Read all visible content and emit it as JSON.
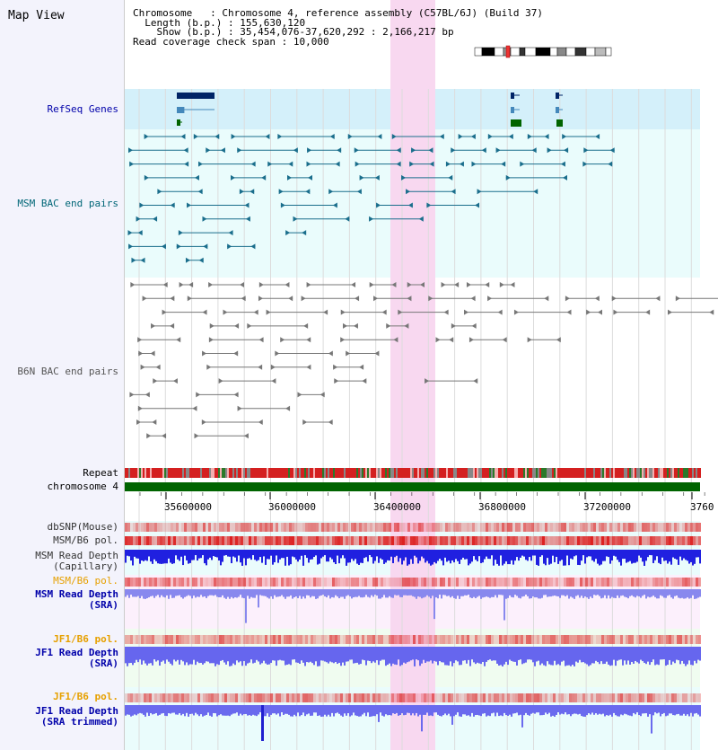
{
  "page": {
    "title": "Map View"
  },
  "info": {
    "line1_label": "Chromosome  ",
    "line1_value": "Chromosome 4, reference assembly (C57BL/6J) (Build 37)",
    "line2_label": "Length (b.p.)",
    "line2_value": "155,630,120",
    "line3_label": "Show (b.p.)",
    "line3_value": "35,454,076-37,620,292 : 2,166,217 bp",
    "line4_label": "Read coverage check span",
    "line4_value": "10,000"
  },
  "tracks": {
    "refseq": "RefSeq Genes",
    "msm_bac": "MSM BAC end pairs",
    "b6n_bac": "B6N BAC end pairs",
    "repeat": "Repeat",
    "chromosome": "chromosome 4",
    "dbsnp": "dbSNP(Mouse)",
    "msm_b6_pol_1": "MSM/B6 pol.",
    "msm_read_depth_cap_1": "MSM Read Depth",
    "msm_read_depth_cap_2": "(Capillary)",
    "msm_b6_pol_2": "MSM/B6 pol.",
    "msm_read_depth_sra_1": "MSM Read Depth",
    "msm_read_depth_sra_2": "(SRA)",
    "jf1_b6_pol_1": "JF1/B6 pol.",
    "jf1_read_depth_sra_1": "JF1 Read Depth",
    "jf1_read_depth_sra_2": "(SRA)",
    "jf1_b6_pol_2": "JF1/B6 pol.",
    "jf1_read_depth_trim_1": "JF1 Read Depth",
    "jf1_read_depth_trim_2": "(SRA trimmed)"
  },
  "axis": {
    "ticks": [
      "35600000",
      "36000000",
      "36400000",
      "36800000",
      "37200000",
      "3760"
    ]
  },
  "colors": {
    "refseq_bg": "#d4f0fa",
    "msm_bg": "#eafcfc",
    "highlight": "#f8d8f0",
    "msm_color": "#1a6e8c",
    "b6n_color": "#777777",
    "label_blue": "#0000aa",
    "label_teal": "#006677",
    "label_orange": "#e6a000",
    "chromosome_green": "#006400"
  }
}
